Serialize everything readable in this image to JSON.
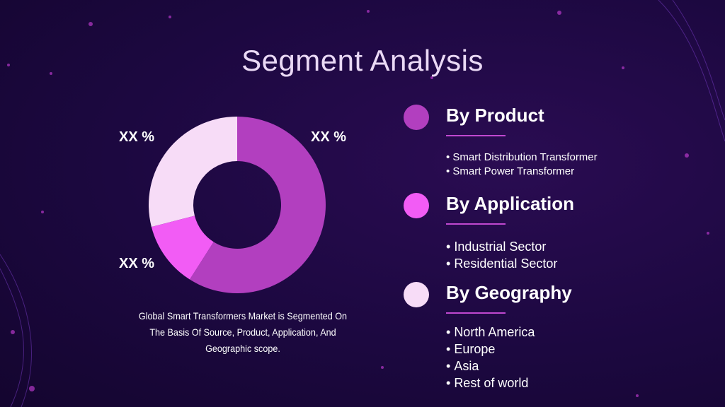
{
  "title": "Segment Analysis",
  "chart_data": {
    "type": "donut",
    "values": [
      59,
      12,
      29
    ],
    "colors": [
      "#b23fbf",
      "#f25cf5",
      "#f7dcf7"
    ],
    "annotations": [
      "XX %",
      "XX %",
      "XX %"
    ]
  },
  "caption": "Global Smart Transformers Market is Segmented On The Basis Of Source, Product, Application, And Geographic scope.",
  "sections": [
    {
      "heading": "By Product",
      "color": "#b23fbf",
      "items": [
        "Smart Distribution Transformer",
        "Smart Power Transformer"
      ]
    },
    {
      "heading": "By Application",
      "color": "#f25cf5",
      "items": [
        "Industrial Sector",
        "Residential Sector"
      ]
    },
    {
      "heading": "By Geography",
      "color": "#f7dcf7",
      "items": [
        "North America",
        "Europe",
        "Asia",
        "Rest of world"
      ]
    }
  ]
}
